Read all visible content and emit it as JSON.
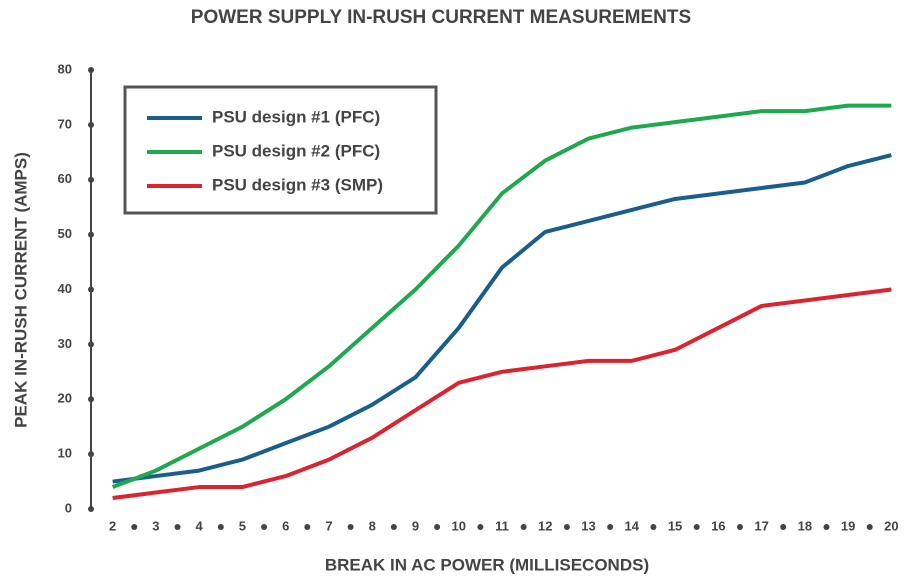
{
  "chart_data": {
    "type": "line",
    "title": "POWER SUPPLY IN-RUSH CURRENT MEASUREMENTS",
    "xlabel": "BREAK IN AC POWER (MILLISECONDS)",
    "ylabel": "PEAK IN-RUSH CURRENT (AMPS)",
    "x": [
      2,
      3,
      4,
      5,
      6,
      7,
      8,
      9,
      10,
      11,
      12,
      13,
      14,
      15,
      16,
      17,
      18,
      19,
      20
    ],
    "series": [
      {
        "name": "PSU design #1 (PFC)",
        "color": "#1b5e8c",
        "values": [
          5,
          6,
          7,
          9,
          12,
          15,
          19,
          24,
          33,
          44,
          50.5,
          52.5,
          54.5,
          56.5,
          57.5,
          58.5,
          59.5,
          62.5,
          64.5
        ]
      },
      {
        "name": "PSU design #2 (PFC)",
        "color": "#1fa84f",
        "values": [
          4,
          7,
          11,
          15,
          20,
          26,
          33,
          40,
          48,
          57.5,
          63.5,
          67.5,
          69.5,
          70.5,
          71.5,
          72.5,
          72.5,
          73.5,
          73.5
        ]
      },
      {
        "name": "PSU design #3 (SMP)",
        "color": "#d9252f",
        "values": [
          2,
          3,
          4,
          4,
          6,
          9,
          13,
          18,
          23,
          25,
          26,
          27,
          27,
          29,
          33,
          37,
          38,
          39,
          40
        ]
      }
    ],
    "xlim": [
      1.5,
      20.5
    ],
    "xticks": [
      2,
      3,
      4,
      5,
      6,
      7,
      8,
      9,
      10,
      11,
      12,
      13,
      14,
      15,
      16,
      17,
      18,
      19,
      20
    ],
    "ylim": [
      0,
      80
    ],
    "yticks": [
      0,
      10,
      20,
      30,
      40,
      50,
      60,
      70,
      80
    ],
    "legend": "upper left",
    "grid": false
  }
}
